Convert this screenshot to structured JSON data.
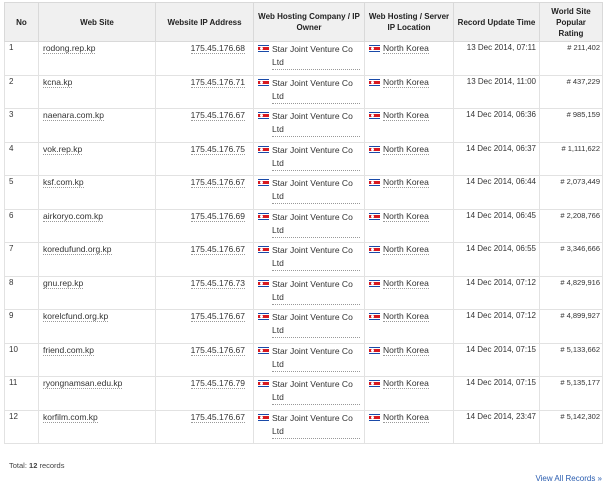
{
  "table": {
    "headers": {
      "no": "No",
      "site": "Web Site",
      "ip": "Website IP Address",
      "host": "Web Hosting Company / IP Owner",
      "loc": "Web Hosting / Server IP Location",
      "date": "Record Update Time",
      "rank": "World Site Popular Rating"
    },
    "rows": [
      {
        "no": "1",
        "site": "rodong.rep.kp",
        "ip": "175.45.176.68",
        "host": "Star Joint Venture Co Ltd",
        "loc": "North Korea",
        "date": "13 Dec 2014, 07:11",
        "rank": "# 211,402"
      },
      {
        "no": "2",
        "site": "kcna.kp",
        "ip": "175.45.176.71",
        "host": "Star Joint Venture Co Ltd",
        "loc": "North Korea",
        "date": "13 Dec 2014, 11:00",
        "rank": "# 437,229"
      },
      {
        "no": "3",
        "site": "naenara.com.kp",
        "ip": "175.45.176.67",
        "host": "Star Joint Venture Co Ltd",
        "loc": "North Korea",
        "date": "14 Dec 2014, 06:36",
        "rank": "# 985,159"
      },
      {
        "no": "4",
        "site": "vok.rep.kp",
        "ip": "175.45.176.75",
        "host": "Star Joint Venture Co Ltd",
        "loc": "North Korea",
        "date": "14 Dec 2014, 06:37",
        "rank": "# 1,111,622"
      },
      {
        "no": "5",
        "site": "ksf.com.kp",
        "ip": "175.45.176.67",
        "host": "Star Joint Venture Co Ltd",
        "loc": "North Korea",
        "date": "14 Dec 2014, 06:44",
        "rank": "# 2,073,449"
      },
      {
        "no": "6",
        "site": "airkoryo.com.kp",
        "ip": "175.45.176.69",
        "host": "Star Joint Venture Co Ltd",
        "loc": "North Korea",
        "date": "14 Dec 2014, 06:45",
        "rank": "# 2,208,766"
      },
      {
        "no": "7",
        "site": "koredufund.org.kp",
        "ip": "175.45.176.67",
        "host": "Star Joint Venture Co Ltd",
        "loc": "North Korea",
        "date": "14 Dec 2014, 06:55",
        "rank": "# 3,346,666"
      },
      {
        "no": "8",
        "site": "gnu.rep.kp",
        "ip": "175.45.176.73",
        "host": "Star Joint Venture Co Ltd",
        "loc": "North Korea",
        "date": "14 Dec 2014, 07:12",
        "rank": "# 4,829,916"
      },
      {
        "no": "9",
        "site": "korelcfund.org.kp",
        "ip": "175.45.176.67",
        "host": "Star Joint Venture Co Ltd",
        "loc": "North Korea",
        "date": "14 Dec 2014, 07:12",
        "rank": "# 4,899,927"
      },
      {
        "no": "10",
        "site": "friend.com.kp",
        "ip": "175.45.176.67",
        "host": "Star Joint Venture Co Ltd",
        "loc": "North Korea",
        "date": "14 Dec 2014, 07:15",
        "rank": "# 5,133,662"
      },
      {
        "no": "11",
        "site": "ryongnamsan.edu.kp",
        "ip": "175.45.176.79",
        "host": "Star Joint Venture Co Ltd",
        "loc": "North Korea",
        "date": "14 Dec 2014, 07:15",
        "rank": "# 5,135,177"
      },
      {
        "no": "12",
        "site": "korfilm.com.kp",
        "ip": "175.45.176.67",
        "host": "Star Joint Venture Co Ltd",
        "loc": "North Korea",
        "date": "14 Dec 2014, 23:47",
        "rank": "# 5,142,302"
      }
    ]
  },
  "footer": {
    "total_label": "Total:",
    "total_count": "12",
    "total_suffix": "records",
    "view_all": "View All Records »"
  },
  "icons": {
    "flag": "north-korea-flag-icon"
  },
  "colors": {
    "link": "#2a5db0",
    "header_bg": "#f0f0f0",
    "border": "#e2e2e2"
  }
}
